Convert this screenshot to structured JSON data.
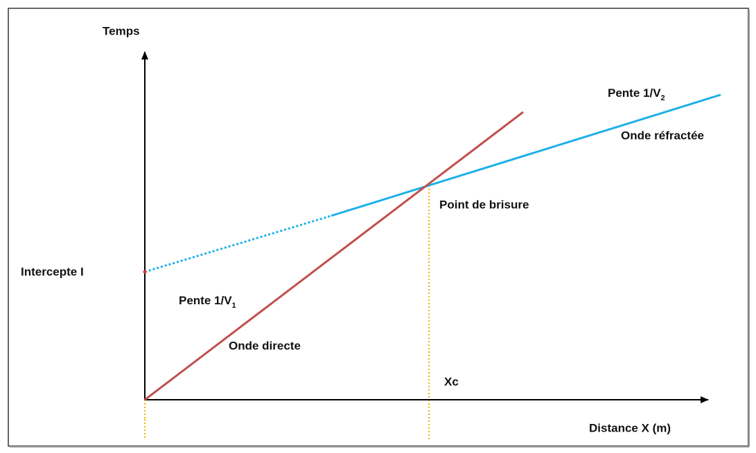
{
  "axes": {
    "y_label": "Temps",
    "x_label": "Distance X (m)"
  },
  "labels": {
    "slope_refracted": {
      "text": "Pente 1/V",
      "sub": "2"
    },
    "refracted_wave": "Onde réfractée",
    "break_point": "Point de brisure",
    "intercept": "Intercepte I",
    "slope_direct": {
      "text": "Pente 1/V",
      "sub": "1"
    },
    "direct_wave": "Onde directe",
    "crossover": "Xc"
  }
}
